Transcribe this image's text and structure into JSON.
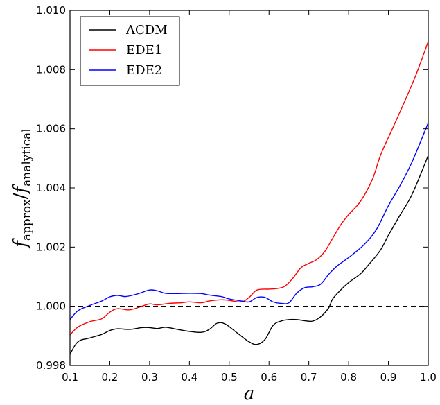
{
  "chart_data": {
    "type": "line",
    "xlabel": "a",
    "ylabel": {
      "f1": "f",
      "sub1": "approx",
      "slash": "/",
      "f2": "f",
      "sub2": "analytical"
    },
    "xlim": [
      0.1,
      1.0
    ],
    "ylim": [
      0.998,
      1.01
    ],
    "xticks": [
      0.1,
      0.2,
      0.3,
      0.4,
      0.5,
      0.6,
      0.7,
      0.8,
      0.9,
      1.0
    ],
    "xtick_labels": [
      "0.1",
      "0.2",
      "0.3",
      "0.4",
      "0.5",
      "0.6",
      "0.7",
      "0.8",
      "0.9",
      "1.0"
    ],
    "yticks": [
      0.998,
      1.0,
      1.002,
      1.004,
      1.006,
      1.008,
      1.01
    ],
    "ytick_labels": [
      "0.998",
      "1.000",
      "1.002",
      "1.004",
      "1.006",
      "1.008",
      "1.010"
    ],
    "legend_position": "top-left",
    "grid": false,
    "reference_line": {
      "y": 1.0,
      "style": "dashed",
      "color": "#000000"
    },
    "series": [
      {
        "name": "ΛCDM",
        "color": "#000000",
        "points": [
          [
            0.1,
            0.99838
          ],
          [
            0.12,
            0.9988
          ],
          [
            0.15,
            0.99893
          ],
          [
            0.18,
            0.99905
          ],
          [
            0.2,
            0.99918
          ],
          [
            0.22,
            0.99924
          ],
          [
            0.25,
            0.99922
          ],
          [
            0.28,
            0.99928
          ],
          [
            0.3,
            0.99928
          ],
          [
            0.32,
            0.99925
          ],
          [
            0.34,
            0.99929
          ],
          [
            0.37,
            0.99922
          ],
          [
            0.4,
            0.99915
          ],
          [
            0.43,
            0.99912
          ],
          [
            0.45,
            0.99922
          ],
          [
            0.47,
            0.99943
          ],
          [
            0.49,
            0.9994
          ],
          [
            0.52,
            0.9991
          ],
          [
            0.55,
            0.9988
          ],
          [
            0.57,
            0.99871
          ],
          [
            0.59,
            0.99888
          ],
          [
            0.61,
            0.99935
          ],
          [
            0.63,
            0.9995
          ],
          [
            0.65,
            0.99955
          ],
          [
            0.67,
            0.99955
          ],
          [
            0.69,
            0.99951
          ],
          [
            0.71,
            0.9995
          ],
          [
            0.73,
            0.99965
          ],
          [
            0.75,
            0.99995
          ],
          [
            0.76,
            1.00025
          ],
          [
            0.78,
            1.00055
          ],
          [
            0.8,
            1.0008
          ],
          [
            0.83,
            1.0011
          ],
          [
            0.85,
            1.0014
          ],
          [
            0.88,
            1.0019
          ],
          [
            0.9,
            1.0024
          ],
          [
            0.93,
            1.0031
          ],
          [
            0.96,
            1.0038
          ],
          [
            1.0,
            1.0051
          ]
        ]
      },
      {
        "name": "EDE1",
        "color": "#ff0000",
        "points": [
          [
            0.1,
            0.99903
          ],
          [
            0.12,
            0.9993
          ],
          [
            0.15,
            0.99948
          ],
          [
            0.18,
            0.99958
          ],
          [
            0.2,
            0.9998
          ],
          [
            0.22,
            0.99992
          ],
          [
            0.25,
            0.99988
          ],
          [
            0.28,
            1.0
          ],
          [
            0.3,
            1.00008
          ],
          [
            0.32,
            1.00005
          ],
          [
            0.35,
            1.0001
          ],
          [
            0.38,
            1.00012
          ],
          [
            0.4,
            1.00015
          ],
          [
            0.43,
            1.00012
          ],
          [
            0.45,
            1.00018
          ],
          [
            0.48,
            1.00022
          ],
          [
            0.5,
            1.0002
          ],
          [
            0.53,
            1.00015
          ],
          [
            0.55,
            1.0003
          ],
          [
            0.57,
            1.00055
          ],
          [
            0.6,
            1.00058
          ],
          [
            0.62,
            1.0006
          ],
          [
            0.64,
            1.00068
          ],
          [
            0.66,
            1.00095
          ],
          [
            0.68,
            1.0013
          ],
          [
            0.7,
            1.00145
          ],
          [
            0.72,
            1.00158
          ],
          [
            0.74,
            1.00185
          ],
          [
            0.76,
            1.0023
          ],
          [
            0.78,
            1.00275
          ],
          [
            0.8,
            1.0031
          ],
          [
            0.83,
            1.00355
          ],
          [
            0.86,
            1.0043
          ],
          [
            0.88,
            1.0051
          ],
          [
            0.91,
            1.006
          ],
          [
            0.94,
            1.0069
          ],
          [
            0.97,
            1.00785
          ],
          [
            1.0,
            1.00895
          ]
        ]
      },
      {
        "name": "EDE2",
        "color": "#0000ff",
        "points": [
          [
            0.1,
            0.99955
          ],
          [
            0.12,
            0.99985
          ],
          [
            0.15,
            1.00003
          ],
          [
            0.18,
            1.00018
          ],
          [
            0.2,
            1.00032
          ],
          [
            0.22,
            1.00037
          ],
          [
            0.24,
            1.00033
          ],
          [
            0.27,
            1.00042
          ],
          [
            0.3,
            1.00055
          ],
          [
            0.32,
            1.00052
          ],
          [
            0.34,
            1.00044
          ],
          [
            0.37,
            1.00043
          ],
          [
            0.4,
            1.00044
          ],
          [
            0.43,
            1.00043
          ],
          [
            0.45,
            1.00038
          ],
          [
            0.48,
            1.00033
          ],
          [
            0.5,
            1.00025
          ],
          [
            0.53,
            1.00018
          ],
          [
            0.55,
            1.00015
          ],
          [
            0.57,
            1.0003
          ],
          [
            0.59,
            1.0003
          ],
          [
            0.61,
            1.00015
          ],
          [
            0.63,
            1.0001
          ],
          [
            0.65,
            1.00012
          ],
          [
            0.67,
            1.00045
          ],
          [
            0.69,
            1.00063
          ],
          [
            0.71,
            1.00066
          ],
          [
            0.73,
            1.00075
          ],
          [
            0.75,
            1.00108
          ],
          [
            0.77,
            1.00135
          ],
          [
            0.79,
            1.00155
          ],
          [
            0.81,
            1.00175
          ],
          [
            0.84,
            1.0021
          ],
          [
            0.87,
            1.0026
          ],
          [
            0.9,
            1.0034
          ],
          [
            0.93,
            1.0041
          ],
          [
            0.96,
            1.0049
          ],
          [
            1.0,
            1.0062
          ]
        ]
      }
    ]
  }
}
